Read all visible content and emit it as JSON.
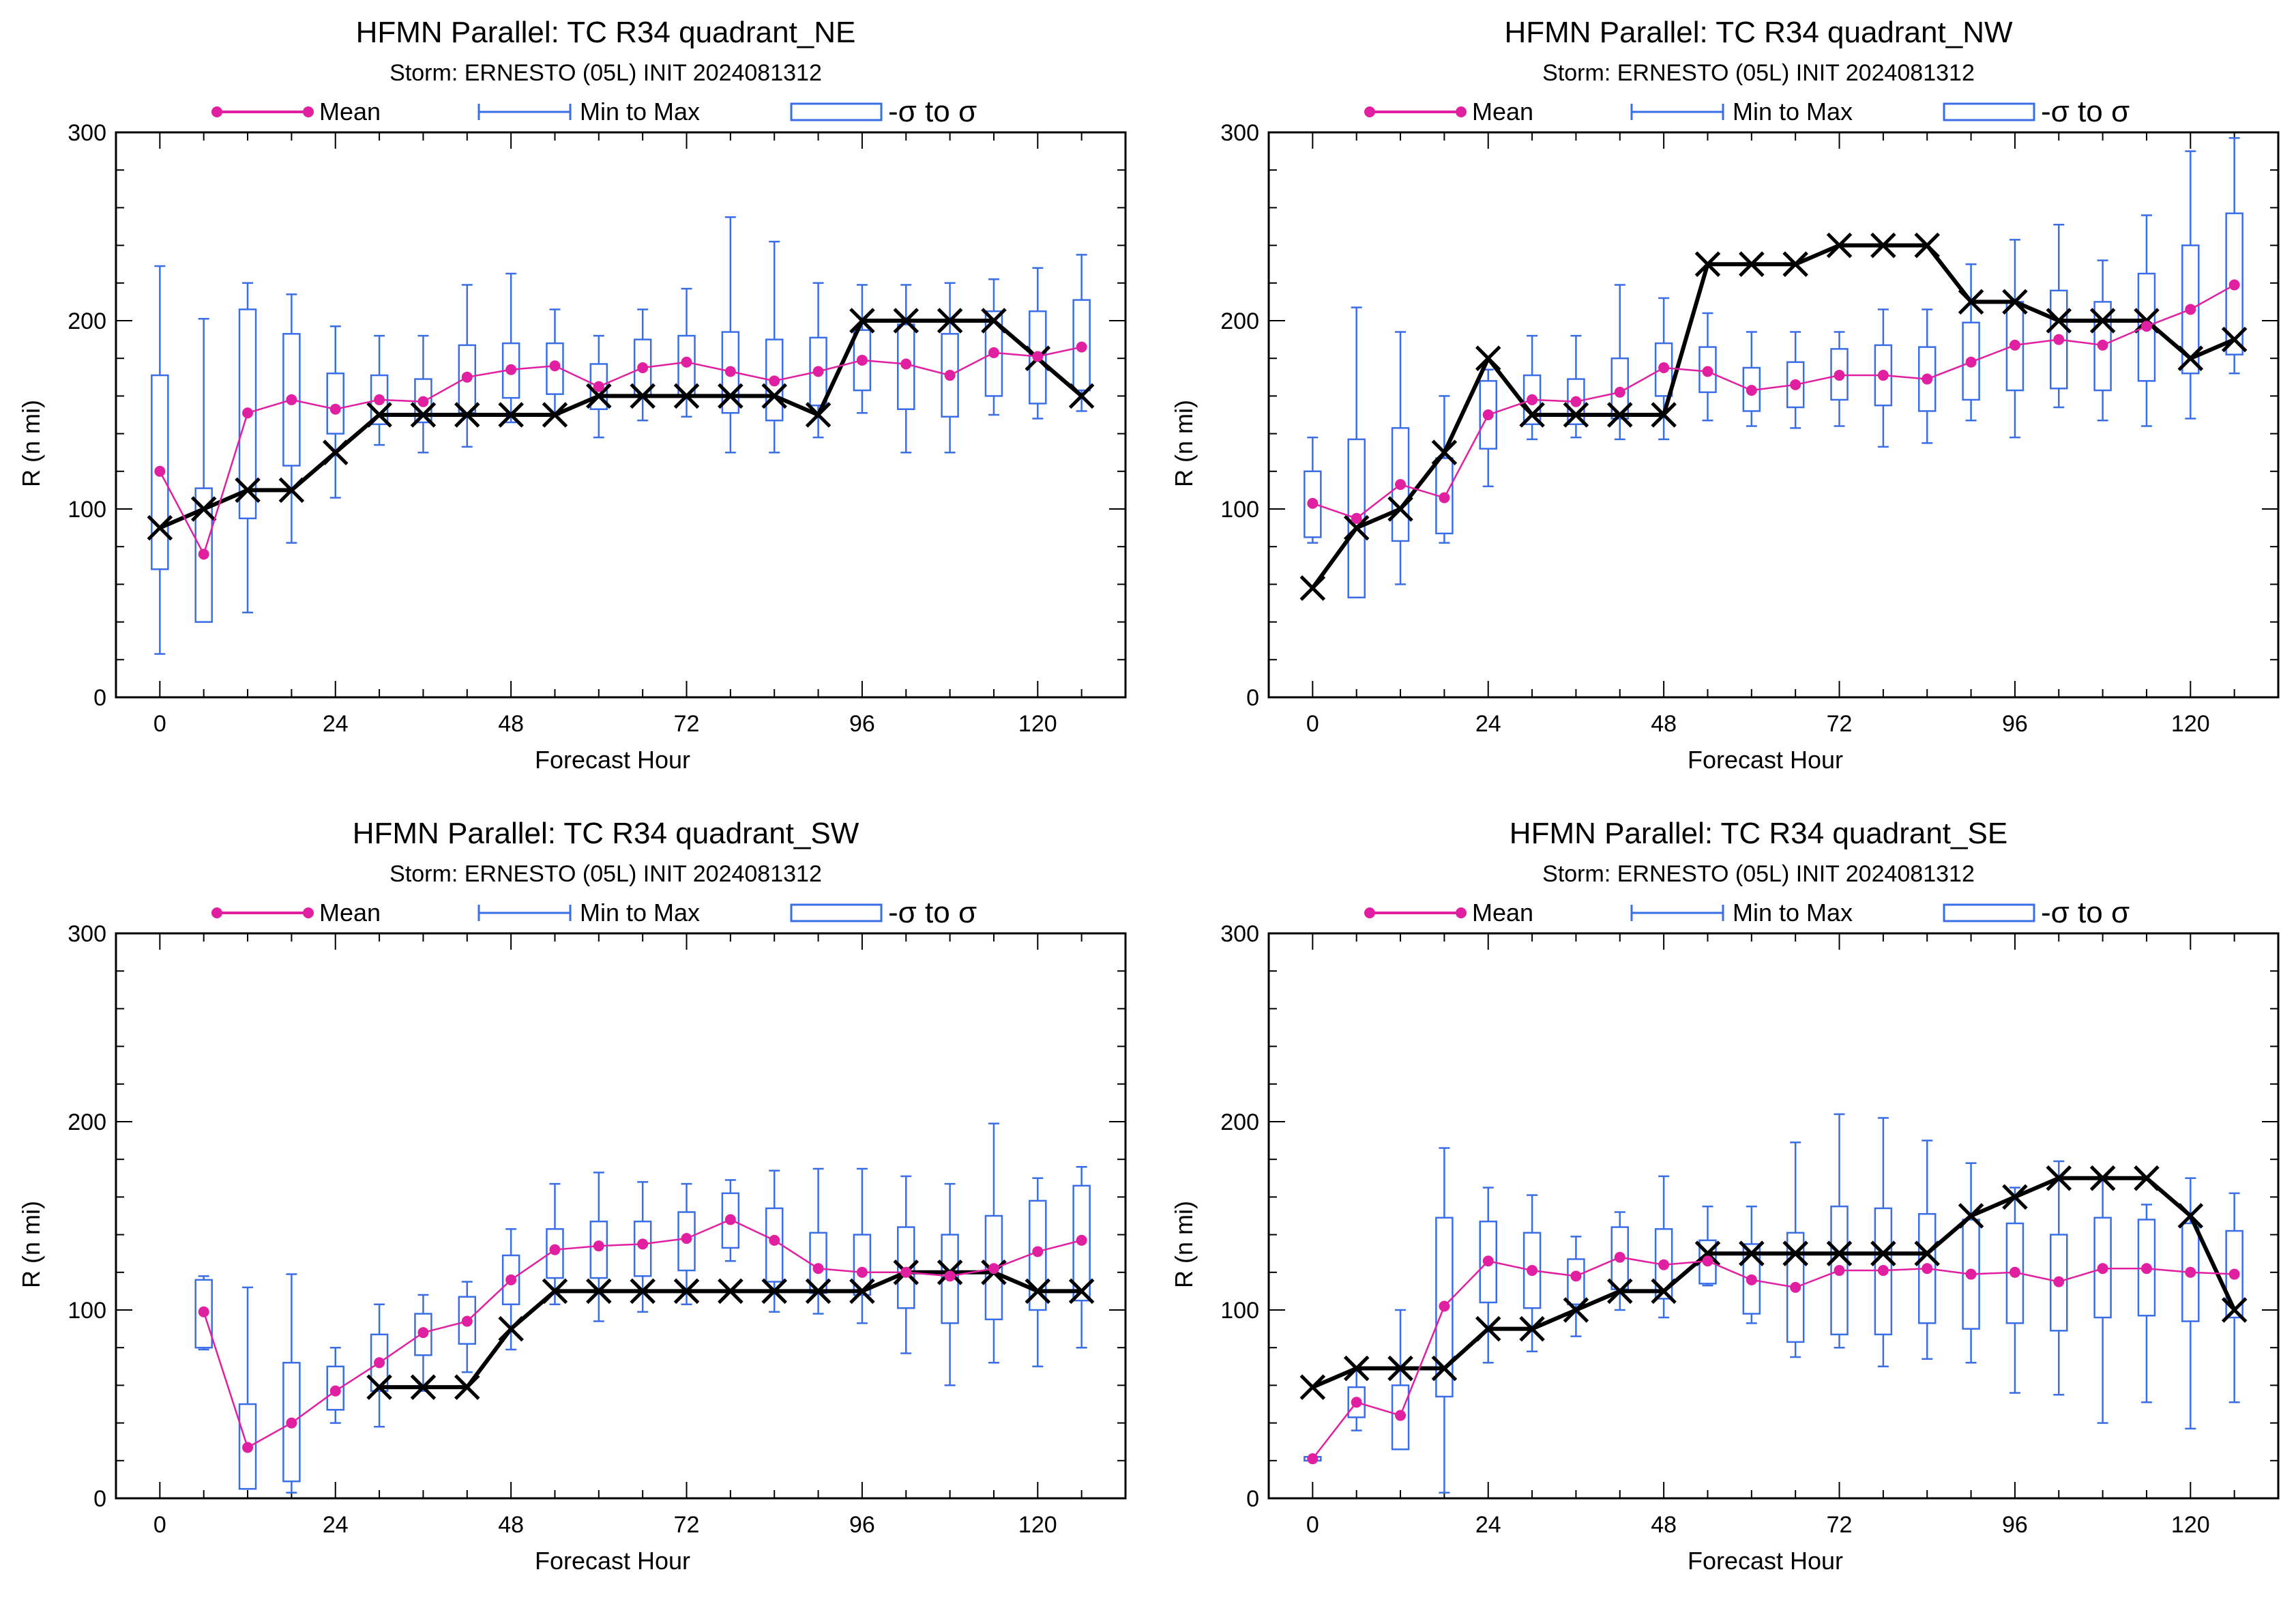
{
  "colors": {
    "mean": "#e020a0",
    "minmax": "#3a6ee8",
    "sigma": "#3a6ee8",
    "actual": "#000000"
  },
  "legend": {
    "mean": "Mean",
    "minmax": "Min to Max",
    "sigma": "-σ to σ"
  },
  "chart_data": [
    {
      "type": "box",
      "title": "HFMN Parallel: TC  R34 quadrant_NE",
      "subtitle": "Storm: ERNESTO (05L) INIT 2024081312",
      "xlabel": "Forecast Hour",
      "ylabel": "R (n mi)",
      "xlim": [
        -6,
        132
      ],
      "ylim": [
        0,
        300
      ],
      "xticks": [
        0,
        24,
        48,
        72,
        96,
        120
      ],
      "yticks": [
        0,
        100,
        200,
        300
      ],
      "hours": [
        0,
        6,
        12,
        18,
        24,
        30,
        36,
        42,
        48,
        54,
        60,
        66,
        72,
        78,
        84,
        90,
        96,
        102,
        108,
        114,
        120,
        126
      ],
      "mean": [
        120,
        76,
        151,
        158,
        153,
        158,
        157,
        170,
        174,
        176,
        165,
        175,
        178,
        173,
        168,
        173,
        179,
        177,
        171,
        183,
        181,
        186
      ],
      "min": [
        23,
        50,
        45,
        82,
        106,
        134,
        130,
        133,
        146,
        150,
        138,
        147,
        149,
        130,
        130,
        138,
        151,
        130,
        130,
        150,
        148,
        152
      ],
      "max": [
        229,
        201,
        220,
        214,
        197,
        192,
        192,
        219,
        225,
        206,
        192,
        206,
        217,
        255,
        242,
        220,
        219,
        219,
        220,
        222,
        228,
        235
      ],
      "sig_lo": [
        68,
        40,
        95,
        123,
        140,
        145,
        146,
        151,
        159,
        161,
        153,
        160,
        160,
        151,
        147,
        155,
        163,
        153,
        149,
        160,
        156,
        163
      ],
      "sig_hi": [
        171,
        111,
        206,
        193,
        172,
        171,
        169,
        187,
        188,
        188,
        177,
        190,
        192,
        194,
        190,
        191,
        195,
        198,
        193,
        205,
        205,
        211
      ],
      "actual": [
        90,
        100,
        110,
        110,
        130,
        150,
        150,
        150,
        150,
        150,
        160,
        160,
        160,
        160,
        160,
        150,
        200,
        200,
        200,
        200,
        180,
        160
      ]
    },
    {
      "type": "box",
      "title": "HFMN Parallel: TC  R34 quadrant_NW",
      "subtitle": "Storm: ERNESTO (05L) INIT 2024081312",
      "xlabel": "Forecast Hour",
      "ylabel": "R (n mi)",
      "xlim": [
        -6,
        132
      ],
      "ylim": [
        0,
        300
      ],
      "xticks": [
        0,
        24,
        48,
        72,
        96,
        120
      ],
      "yticks": [
        0,
        100,
        200,
        300
      ],
      "hours": [
        0,
        6,
        12,
        18,
        24,
        30,
        36,
        42,
        48,
        54,
        60,
        66,
        72,
        78,
        84,
        90,
        96,
        102,
        108,
        114,
        120,
        126
      ],
      "mean": [
        103,
        95,
        113,
        106,
        150,
        158,
        157,
        162,
        175,
        173,
        163,
        166,
        171,
        171,
        169,
        178,
        187,
        190,
        187,
        197,
        206,
        219
      ],
      "min": [
        82,
        53,
        60,
        82,
        112,
        137,
        138,
        137,
        137,
        147,
        144,
        143,
        144,
        133,
        135,
        147,
        138,
        154,
        147,
        144,
        148,
        172
      ],
      "max": [
        138,
        207,
        194,
        160,
        174,
        192,
        192,
        219,
        212,
        204,
        194,
        194,
        194,
        206,
        206,
        230,
        243,
        251,
        232,
        256,
        290,
        297
      ],
      "sig_lo": [
        85,
        53,
        83,
        87,
        132,
        145,
        145,
        148,
        160,
        162,
        152,
        154,
        158,
        155,
        152,
        158,
        163,
        164,
        163,
        168,
        172,
        182
      ],
      "sig_hi": [
        120,
        137,
        143,
        127,
        168,
        171,
        169,
        180,
        188,
        186,
        175,
        178,
        185,
        187,
        186,
        199,
        210,
        216,
        210,
        225,
        240,
        257
      ],
      "actual": [
        58,
        90,
        100,
        130,
        180,
        150,
        150,
        150,
        150,
        230,
        230,
        230,
        240,
        240,
        240,
        210,
        210,
        200,
        200,
        200,
        180,
        190
      ]
    },
    {
      "type": "box",
      "title": "HFMN Parallel: TC  R34 quadrant_SW",
      "subtitle": "Storm: ERNESTO (05L) INIT 2024081312",
      "xlabel": "Forecast Hour",
      "ylabel": "R (n mi)",
      "xlim": [
        -6,
        132
      ],
      "ylim": [
        0,
        300
      ],
      "xticks": [
        0,
        24,
        48,
        72,
        96,
        120
      ],
      "yticks": [
        0,
        100,
        200,
        300
      ],
      "hours": [
        6,
        12,
        18,
        24,
        30,
        36,
        42,
        48,
        54,
        60,
        66,
        72,
        78,
        84,
        90,
        96,
        102,
        108,
        114,
        120,
        126
      ],
      "mean": [
        99,
        27,
        40,
        57,
        72,
        88,
        94,
        116,
        132,
        134,
        135,
        138,
        148,
        137,
        122,
        120,
        120,
        118,
        122,
        131,
        137
      ],
      "min": [
        79,
        5,
        3,
        40,
        38,
        57,
        67,
        79,
        103,
        94,
        99,
        103,
        126,
        99,
        98,
        93,
        77,
        60,
        72,
        70,
        80
      ],
      "max": [
        118,
        112,
        119,
        80,
        103,
        108,
        115,
        143,
        167,
        173,
        168,
        167,
        169,
        174,
        175,
        175,
        171,
        167,
        199,
        170,
        176
      ],
      "sig_lo": [
        80,
        5,
        9,
        47,
        57,
        76,
        82,
        103,
        117,
        117,
        118,
        121,
        133,
        115,
        109,
        108,
        101,
        93,
        95,
        100,
        105
      ],
      "sig_hi": [
        116,
        50,
        72,
        70,
        87,
        98,
        107,
        129,
        143,
        147,
        147,
        152,
        162,
        154,
        141,
        140,
        144,
        140,
        150,
        158,
        166
      ],
      "actual_hours": [
        30,
        36,
        42,
        48,
        54,
        60,
        66,
        72,
        78,
        84,
        90,
        96,
        102,
        108,
        114,
        120,
        126
      ],
      "actual": [
        59,
        59,
        59,
        90,
        110,
        110,
        110,
        110,
        110,
        110,
        110,
        110,
        120,
        120,
        120,
        110,
        110
      ]
    },
    {
      "type": "box",
      "title": "HFMN Parallel: TC  R34 quadrant_SE",
      "subtitle": "Storm: ERNESTO (05L) INIT 2024081312",
      "xlabel": "Forecast Hour",
      "ylabel": "R (n mi)",
      "xlim": [
        -6,
        132
      ],
      "ylim": [
        0,
        300
      ],
      "xticks": [
        0,
        24,
        48,
        72,
        96,
        120
      ],
      "yticks": [
        0,
        100,
        200,
        300
      ],
      "hours": [
        0,
        6,
        12,
        18,
        24,
        30,
        36,
        42,
        48,
        54,
        60,
        66,
        72,
        78,
        84,
        90,
        96,
        102,
        108,
        114,
        120,
        126
      ],
      "mean": [
        21,
        51,
        44,
        102,
        126,
        121,
        118,
        128,
        124,
        126,
        116,
        112,
        121,
        121,
        122,
        119,
        120,
        115,
        122,
        122,
        120,
        119
      ],
      "min": [
        20,
        36,
        27,
        3,
        72,
        78,
        86,
        100,
        96,
        113,
        93,
        75,
        80,
        70,
        74,
        72,
        56,
        55,
        40,
        51,
        37,
        51
      ],
      "max": [
        22,
        68,
        100,
        186,
        165,
        161,
        139,
        152,
        171,
        155,
        155,
        189,
        204,
        202,
        190,
        178,
        165,
        179,
        171,
        156,
        170,
        162
      ],
      "sig_lo": [
        20,
        43,
        26,
        54,
        104,
        101,
        103,
        111,
        106,
        114,
        98,
        83,
        87,
        87,
        93,
        90,
        93,
        89,
        96,
        97,
        94,
        96
      ],
      "sig_hi": [
        22,
        59,
        60,
        149,
        147,
        141,
        127,
        144,
        143,
        137,
        135,
        141,
        155,
        154,
        151,
        148,
        146,
        140,
        149,
        148,
        146,
        142
      ],
      "actual": [
        59,
        69,
        69,
        69,
        90,
        90,
        100,
        110,
        110,
        130,
        130,
        130,
        130,
        130,
        130,
        150,
        160,
        170,
        170,
        170,
        150,
        100
      ]
    }
  ]
}
